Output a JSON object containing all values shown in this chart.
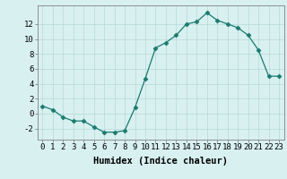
{
  "x": [
    0,
    1,
    2,
    3,
    4,
    5,
    6,
    7,
    8,
    9,
    10,
    11,
    12,
    13,
    14,
    15,
    16,
    17,
    18,
    19,
    20,
    21,
    22,
    23
  ],
  "y": [
    1,
    0.5,
    -0.5,
    -1,
    -1,
    -1.8,
    -2.5,
    -2.5,
    -2.3,
    0.8,
    4.7,
    8.8,
    9.5,
    10.5,
    12,
    12.3,
    13.5,
    12.5,
    12,
    11.5,
    10.5,
    8.5,
    5,
    5
  ],
  "line_color": "#1a7a6e",
  "marker": "D",
  "marker_size": 2.5,
  "bg_color": "#d8f0f0",
  "grid_color": "#b8d8d8",
  "xlabel": "Humidex (Indice chaleur)",
  "xlim": [
    -0.5,
    23.5
  ],
  "ylim": [
    -3.5,
    14.5
  ],
  "yticks": [
    -2,
    0,
    2,
    4,
    6,
    8,
    10,
    12
  ],
  "xticks": [
    0,
    1,
    2,
    3,
    4,
    5,
    6,
    7,
    8,
    9,
    10,
    11,
    12,
    13,
    14,
    15,
    16,
    17,
    18,
    19,
    20,
    21,
    22,
    23
  ],
  "tick_fontsize": 6.5,
  "xlabel_fontsize": 7.5
}
